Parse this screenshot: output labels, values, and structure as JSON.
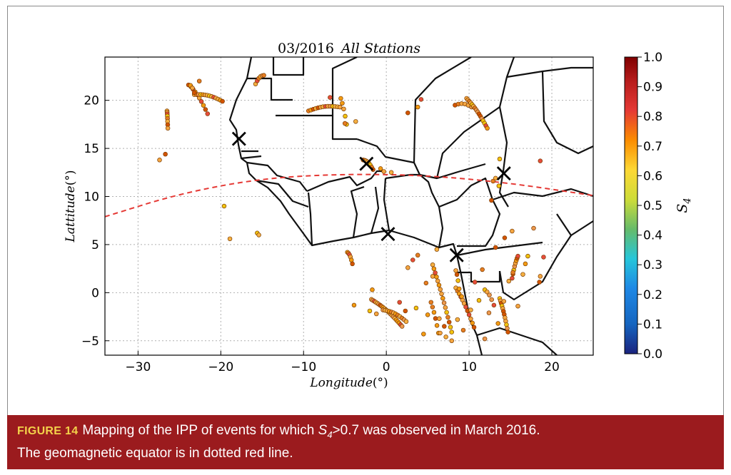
{
  "chart_data": {
    "type": "scatter",
    "title": "03/2016",
    "title_italic": "All Stations",
    "xlabel": "Longitude",
    "xlabel_unit": "(°)",
    "ylabel": "Lattitude",
    "ylabel_unit": "(°)",
    "xlim": [
      -34,
      25
    ],
    "ylim": [
      -6.5,
      24.5
    ],
    "xticks": [
      "−30",
      "−20",
      "−10",
      "0",
      "10",
      "20"
    ],
    "yticks": [
      "20",
      "15",
      "10",
      "5",
      "0",
      "−5"
    ],
    "grid": true,
    "colorbar": {
      "label": "S",
      "label_sub": "4",
      "range": [
        0.0,
        1.0
      ],
      "ticks": [
        "1.0",
        "0.9",
        "0.8",
        "0.7",
        "0.6",
        "0.5",
        "0.4",
        "0.3",
        "0.2",
        "0.1",
        "0.0"
      ],
      "colormap": [
        "#1a237e",
        "#1565c0",
        "#1e88e5",
        "#26c6da",
        "#66bb6a",
        "#cddc39",
        "#fdd835",
        "#fb8c00",
        "#e53935",
        "#b71c1c",
        "#7f0000"
      ]
    },
    "geomagnetic_equator": {
      "style": "dashed",
      "color": "#e53935",
      "points": [
        [
          -34,
          7.9
        ],
        [
          -25,
          10.3
        ],
        [
          -15,
          11.9
        ],
        [
          -5,
          12.35
        ],
        [
          5,
          12.2
        ],
        [
          15,
          11.4
        ],
        [
          25,
          10.1
        ]
      ]
    },
    "stations": [
      {
        "lon": -17.8,
        "lat": 16.0
      },
      {
        "lon": -2.4,
        "lat": 13.4
      },
      {
        "lon": 14.2,
        "lat": 12.4
      },
      {
        "lon": 0.2,
        "lat": 6.1
      },
      {
        "lon": 8.5,
        "lat": 3.9
      }
    ],
    "series": [
      {
        "arcs": [
          {
            "from": [
              -23.6,
              21.4
            ],
            "to": [
              -21.6,
              18.6
            ],
            "n": 9
          },
          {
            "from": [
              -23.2,
              20.6
            ],
            "to": [
              -19.8,
              19.9
            ],
            "n": 14
          },
          {
            "from": [
              -23.9,
              21.6
            ],
            "to": [
              -23.2,
              20.8
            ],
            "n": 4
          },
          {
            "from": [
              -26.5,
              18.9
            ],
            "to": [
              -26.4,
              17.1
            ],
            "n": 8
          },
          {
            "from": [
              -15.8,
              21.7
            ],
            "to": [
              -14.8,
              22.6
            ],
            "n": 6
          },
          {
            "from": [
              -9.4,
              18.9
            ],
            "to": [
              -5.6,
              19.3
            ],
            "n": 14
          },
          {
            "from": [
              -5.5,
              20.2
            ],
            "to": [
              -4.8,
              17.5
            ],
            "n": 5
          },
          {
            "from": [
              8.3,
              19.5
            ],
            "to": [
              10.3,
              19.3
            ],
            "n": 6
          },
          {
            "from": [
              9.7,
              20.2
            ],
            "to": [
              12.2,
              17.1
            ],
            "n": 16
          },
          {
            "from": [
              -2.8,
              13.8
            ],
            "to": [
              -1.6,
              12.8
            ],
            "n": 8
          },
          {
            "from": [
              -4.7,
              4.2
            ],
            "to": [
              -4.1,
              3.0
            ],
            "n": 6
          },
          {
            "from": [
              -1.8,
              -0.7
            ],
            "to": [
              1.9,
              -3.5
            ],
            "n": 22
          },
          {
            "from": [
              -0.4,
              -1.8
            ],
            "to": [
              2.4,
              -3.0
            ],
            "n": 12
          },
          {
            "from": [
              5.6,
              2.9
            ],
            "to": [
              7.9,
              -4.1
            ],
            "n": 16
          },
          {
            "from": [
              5.4,
              -1.0
            ],
            "to": [
              6.3,
              -4.2
            ],
            "n": 6
          },
          {
            "from": [
              8.4,
              0.5
            ],
            "to": [
              10.6,
              -3.6
            ],
            "n": 12
          },
          {
            "from": [
              13.7,
              -0.6
            ],
            "to": [
              14.7,
              -4.1
            ],
            "n": 12
          },
          {
            "from": [
              15.2,
              1.5
            ],
            "to": [
              15.9,
              3.8
            ],
            "n": 8
          },
          {
            "from": [
              11.9,
              0.3
            ],
            "to": [
              13.0,
              -1.3
            ],
            "n": 5
          },
          {
            "from": [
              8.4,
              2.3
            ],
            "to": [
              8.8,
              0.4
            ],
            "n": 4
          }
        ],
        "points": [
          [
            -22.6,
            22.0
          ],
          [
            -27.4,
            13.8
          ],
          [
            -26.7,
            14.4
          ],
          [
            -19.6,
            9.0
          ],
          [
            -18.9,
            5.6
          ],
          [
            -15.6,
            6.2
          ],
          [
            -15.4,
            6.0
          ],
          [
            -3.7,
            17.8
          ],
          [
            -6.8,
            20.3
          ],
          [
            -5.0,
            17.6
          ],
          [
            3.8,
            19.3
          ],
          [
            2.6,
            18.7
          ],
          [
            4.2,
            20.1
          ],
          [
            -0.7,
            12.9
          ],
          [
            -0.3,
            12.6
          ],
          [
            0.6,
            12.5
          ],
          [
            13.7,
            13.9
          ],
          [
            13.2,
            11.9
          ],
          [
            13.6,
            11.1
          ],
          [
            12.9,
            11.6
          ],
          [
            12.7,
            9.6
          ],
          [
            18.6,
            13.7
          ],
          [
            15.2,
            6.4
          ],
          [
            17.8,
            6.7
          ],
          [
            14.8,
            1.2
          ],
          [
            15.3,
            2.1
          ],
          [
            18.6,
            1.7
          ],
          [
            18.5,
            1.1
          ],
          [
            19.0,
            3.7
          ],
          [
            16.8,
            3.0
          ],
          [
            6.1,
            4.5
          ],
          [
            5.6,
            1.7
          ],
          [
            4.8,
            1.0
          ],
          [
            2.6,
            2.6
          ],
          [
            3.2,
            3.4
          ],
          [
            3.8,
            3.9
          ],
          [
            -3.9,
            -1.3
          ],
          [
            -1.7,
            0.3
          ],
          [
            -2.0,
            -1.9
          ],
          [
            -1.2,
            -2.2
          ],
          [
            1.6,
            -1.0
          ],
          [
            2.3,
            -1.9
          ],
          [
            5.0,
            -2.3
          ],
          [
            6.5,
            -4.2
          ],
          [
            7.2,
            -4.6
          ],
          [
            7.9,
            -5.0
          ],
          [
            9.1,
            -0.4
          ],
          [
            10.2,
            -1.8
          ],
          [
            11.2,
            -0.8
          ],
          [
            12.4,
            -2.1
          ],
          [
            13.5,
            -3.2
          ],
          [
            10.7,
            1.1
          ],
          [
            11.6,
            2.4
          ],
          [
            9.3,
            -3.9
          ],
          [
            8.6,
            -2.8
          ],
          [
            3.6,
            -1.6
          ],
          [
            14.2,
            -0.9
          ],
          [
            16.5,
            1.9
          ],
          [
            17.1,
            3.8
          ],
          [
            14.3,
            5.7
          ],
          [
            13.2,
            4.7
          ],
          [
            6.4,
            -2.7
          ],
          [
            7.0,
            -3.5
          ],
          [
            11.9,
            -4.8
          ],
          [
            15.9,
            -1.4
          ],
          [
            4.5,
            -4.3
          ]
        ]
      }
    ]
  },
  "caption": {
    "label": "FIGURE 14",
    "text1": "Mapping of the IPP of events for which",
    "s": "S",
    "s_sub": "4",
    "text2": ">0.7 was observed in March 2016.",
    "line2": "The geomagnetic equator is in dotted red line."
  }
}
